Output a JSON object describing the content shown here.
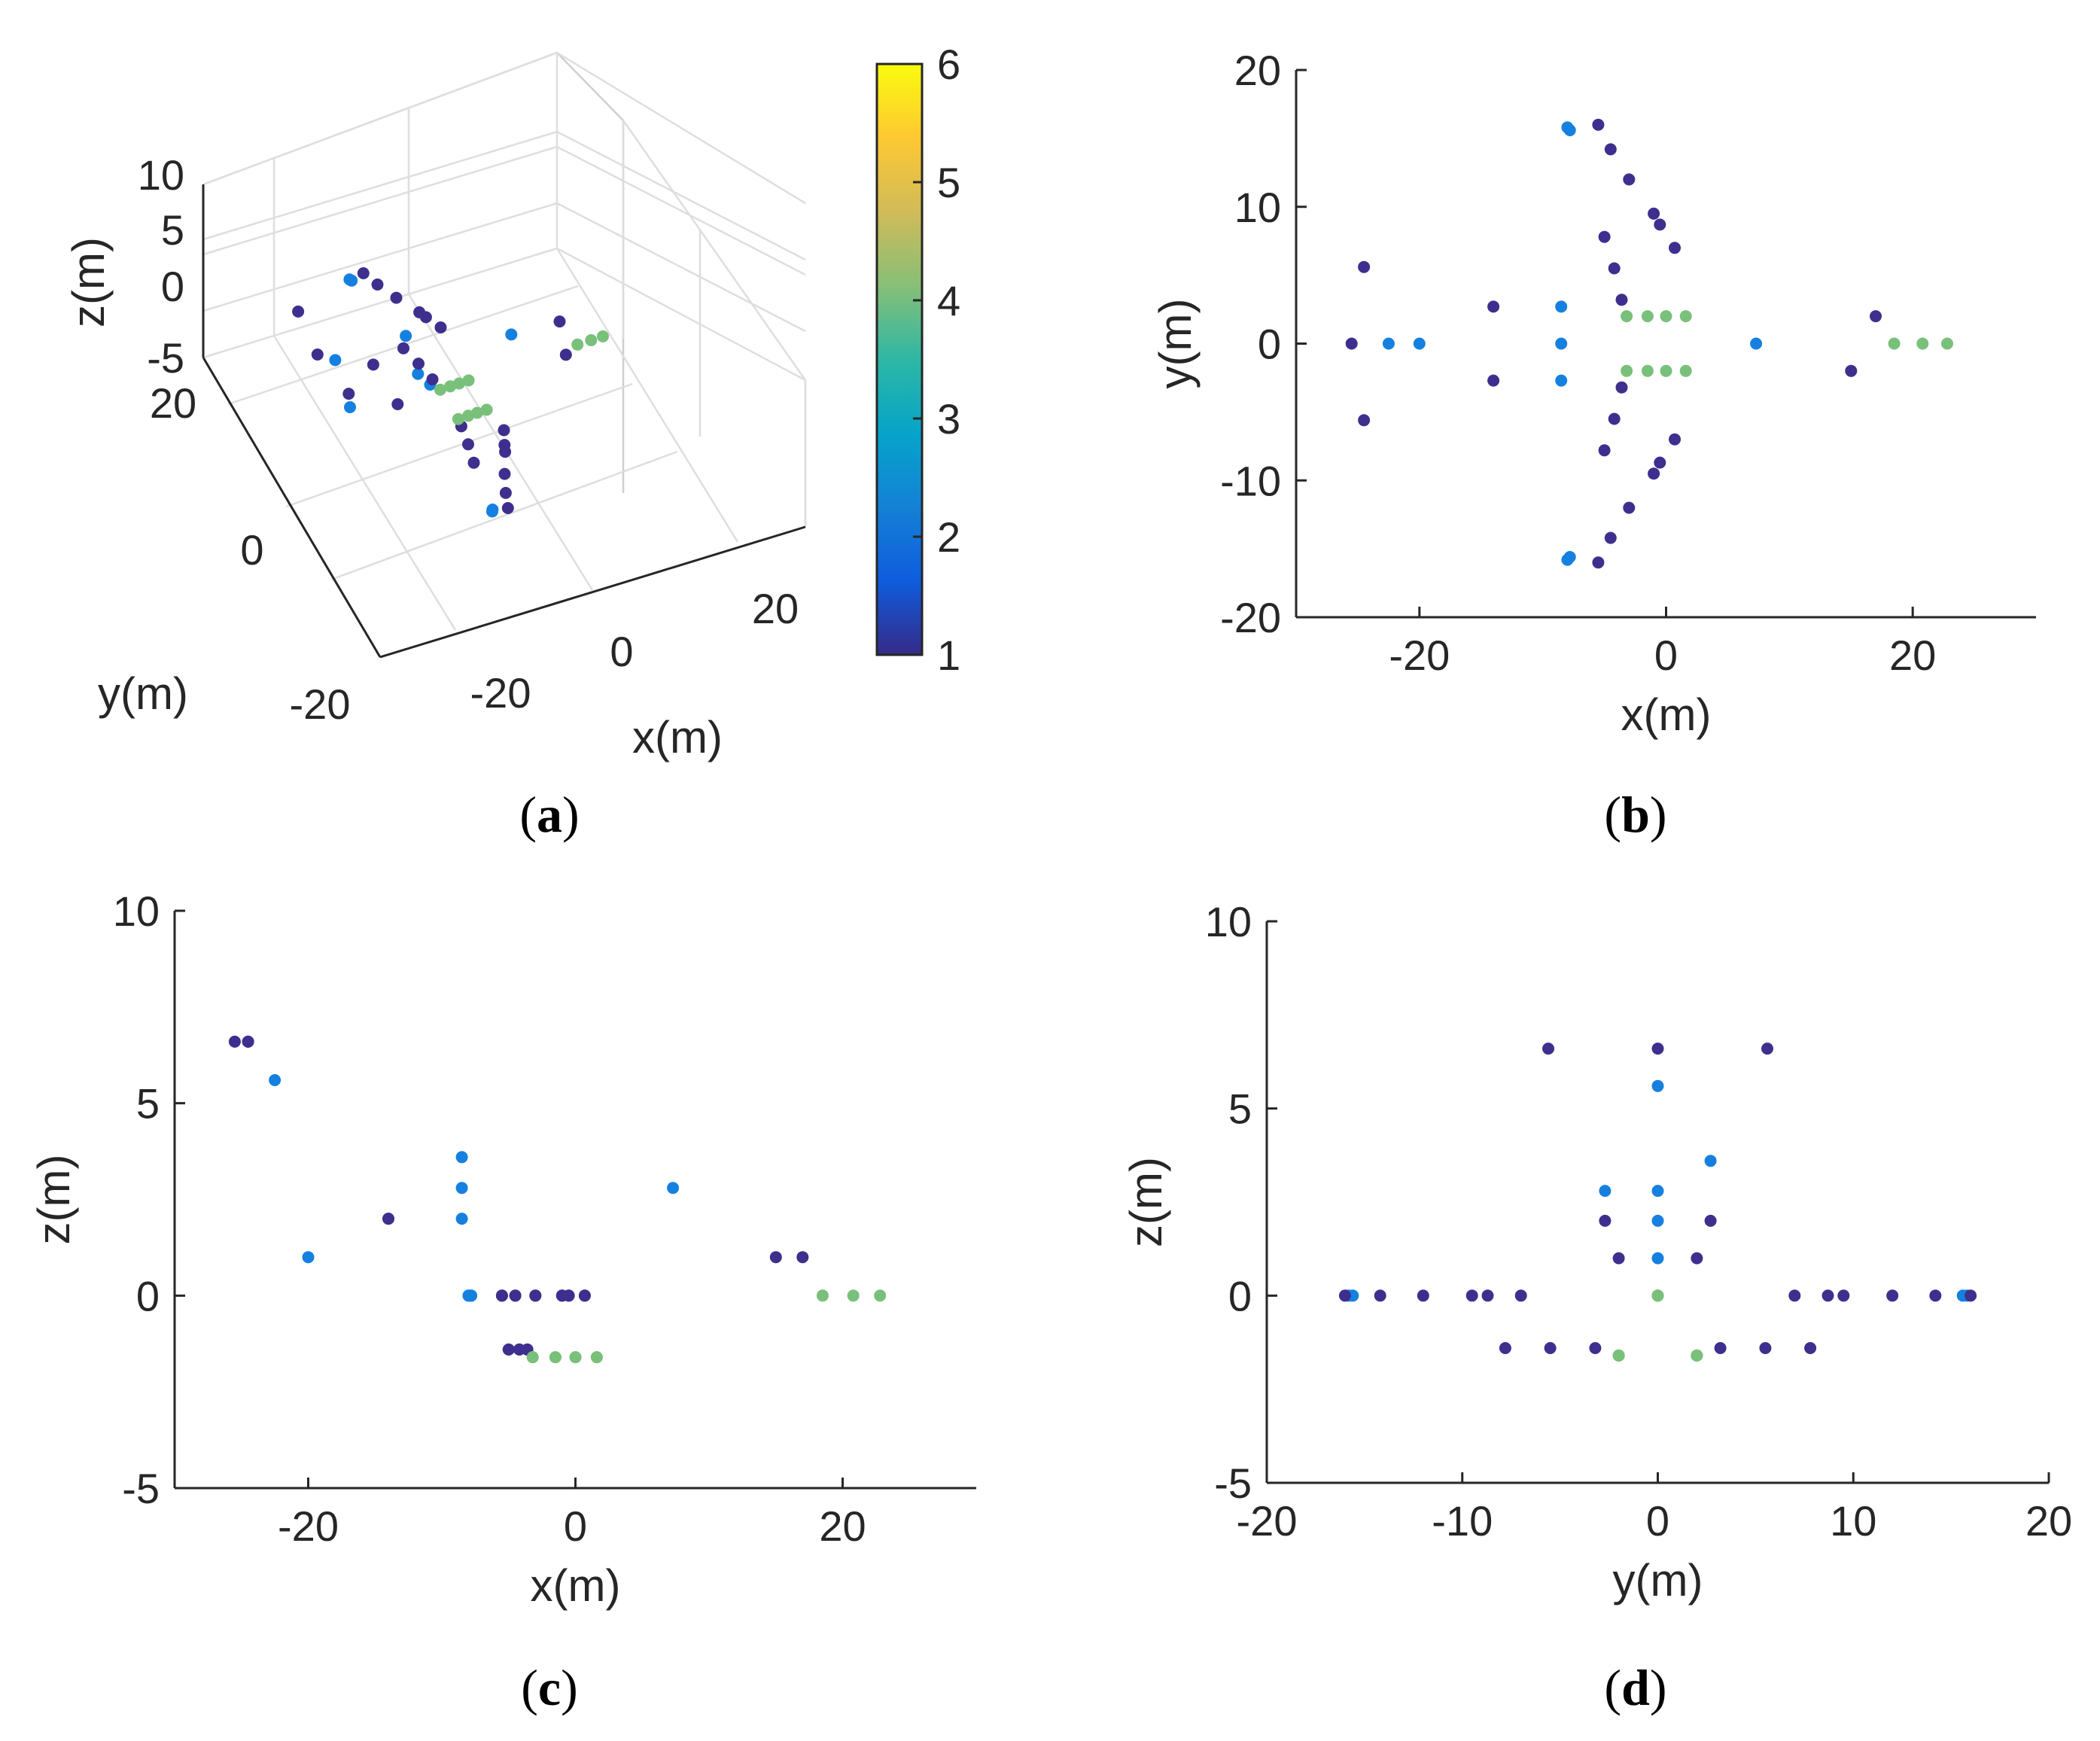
{
  "colormap": {
    "name": "parula",
    "min": 1,
    "max": 6,
    "ticks": [
      "1",
      "2",
      "3",
      "4",
      "5",
      "6"
    ],
    "stops": [
      "#352a87",
      "#0f5cdd",
      "#1481d6",
      "#06a4ca",
      "#2eb7a4",
      "#87bf77",
      "#d1bb59",
      "#fec832",
      "#f9fb0e"
    ]
  },
  "point_colors": {
    "c1": "#3e2f8e",
    "c2": "#1680e0",
    "c4": "#79c07a"
  },
  "chart_data": [
    {
      "id": "a",
      "type": "scatter3d",
      "caption": "(a)",
      "caption_letter": "a",
      "xlabel": "x(m)",
      "ylabel": "y(m)",
      "zlabel": "z(m)",
      "xticks": [
        "-20",
        "0",
        "20"
      ],
      "yticks": [
        "-20",
        "0",
        "20"
      ],
      "zticks": [
        "-5",
        "0",
        "5",
        "10"
      ],
      "xlim": [
        -30,
        30
      ],
      "ylim": [
        -20,
        20
      ],
      "zlim": [
        -5,
        10
      ],
      "colorbar": true
    },
    {
      "id": "b",
      "type": "scatter",
      "caption": "(b)",
      "caption_letter": "b",
      "xlabel": "x(m)",
      "ylabel": "y(m)",
      "xlim": [
        -30,
        30
      ],
      "ylim": [
        -20,
        20
      ],
      "xticks": [
        "-20",
        "0",
        "20"
      ],
      "yticks": [
        "-20",
        "-10",
        "0",
        "10",
        "20"
      ],
      "x_key": "x",
      "y_key": "y"
    },
    {
      "id": "c",
      "type": "scatter",
      "caption": "(c)",
      "caption_letter": "c",
      "xlabel": "x(m)",
      "ylabel": "z(m)",
      "xlim": [
        -30,
        30
      ],
      "ylim": [
        -5,
        10
      ],
      "xticks": [
        "-20",
        "0",
        "20"
      ],
      "yticks": [
        "-5",
        "0",
        "5",
        "10"
      ],
      "x_key": "x",
      "y_key": "z"
    },
    {
      "id": "d",
      "type": "scatter",
      "caption": "(d)",
      "caption_letter": "d",
      "xlabel": "y(m)",
      "ylabel": "z(m)",
      "xlim": [
        -20,
        20
      ],
      "ylim": [
        -5,
        10
      ],
      "xticks": [
        "-20",
        "-10",
        "0",
        "10",
        "20"
      ],
      "yticks": [
        "-5",
        "0",
        "5",
        "10"
      ],
      "x_key": "y",
      "y_key": "z"
    }
  ],
  "points": [
    {
      "x": -25.5,
      "y": 0,
      "z": 6.6,
      "c": 1
    },
    {
      "x": -24.5,
      "y": 5.6,
      "z": 6.6,
      "c": 1
    },
    {
      "x": -24.5,
      "y": -5.6,
      "z": 6.6,
      "c": 1
    },
    {
      "x": -22.5,
      "y": 0,
      "z": 5.6,
      "c": 2
    },
    {
      "x": -20,
      "y": 0,
      "z": 1.0,
      "c": 2
    },
    {
      "x": -14,
      "y": 2.7,
      "z": 2.0,
      "c": 1
    },
    {
      "x": -14,
      "y": -2.7,
      "z": 2.0,
      "c": 1
    },
    {
      "x": -8.5,
      "y": 2.7,
      "z": 3.6,
      "c": 2
    },
    {
      "x": -8.5,
      "y": 0,
      "z": 2.0,
      "c": 2
    },
    {
      "x": -8.5,
      "y": -2.7,
      "z": 2.8,
      "c": 2
    },
    {
      "x": -8,
      "y": 15.8,
      "z": 0,
      "c": 2
    },
    {
      "x": -7.8,
      "y": 15.6,
      "z": 0,
      "c": 2
    },
    {
      "x": -8,
      "y": -15.8,
      "z": 0,
      "c": 2
    },
    {
      "x": -7.8,
      "y": -15.6,
      "z": 0,
      "c": 2
    },
    {
      "x": -5.5,
      "y": 16,
      "z": 0,
      "c": 1
    },
    {
      "x": -5.5,
      "y": -16,
      "z": 0,
      "c": 1
    },
    {
      "x": -4.5,
      "y": 14.2,
      "z": 0,
      "c": 1
    },
    {
      "x": -4.5,
      "y": -14.2,
      "z": 0,
      "c": 1
    },
    {
      "x": -3,
      "y": 12,
      "z": 0,
      "c": 1
    },
    {
      "x": -3,
      "y": -12,
      "z": 0,
      "c": 1
    },
    {
      "x": -1,
      "y": 9.5,
      "z": 0,
      "c": 1
    },
    {
      "x": -1,
      "y": -9.5,
      "z": 0,
      "c": 1
    },
    {
      "x": -0.5,
      "y": 8.7,
      "z": 0,
      "c": 1
    },
    {
      "x": -0.5,
      "y": -8.7,
      "z": 0,
      "c": 1
    },
    {
      "x": 0.7,
      "y": 7,
      "z": 0,
      "c": 1
    },
    {
      "x": 0.7,
      "y": -7,
      "z": 0,
      "c": 1
    },
    {
      "x": -5,
      "y": 7.8,
      "z": -1.4,
      "c": 1
    },
    {
      "x": -5,
      "y": -7.8,
      "z": -1.4,
      "c": 1
    },
    {
      "x": -4.2,
      "y": 5.5,
      "z": -1.4,
      "c": 1
    },
    {
      "x": -4.2,
      "y": -5.5,
      "z": -1.4,
      "c": 1
    },
    {
      "x": -3.6,
      "y": 3.2,
      "z": -1.4,
      "c": 1
    },
    {
      "x": -3.6,
      "y": -3.2,
      "z": -1.4,
      "c": 1
    },
    {
      "x": -3.2,
      "y": 2.0,
      "z": -1.6,
      "c": 4
    },
    {
      "x": -1.5,
      "y": 2.0,
      "z": -1.6,
      "c": 4
    },
    {
      "x": 0,
      "y": 2.0,
      "z": -1.6,
      "c": 4
    },
    {
      "x": 1.6,
      "y": 2.0,
      "z": -1.6,
      "c": 4
    },
    {
      "x": -3.2,
      "y": -2.0,
      "z": -1.6,
      "c": 4
    },
    {
      "x": -1.5,
      "y": -2.0,
      "z": -1.6,
      "c": 4
    },
    {
      "x": 0,
      "y": -2.0,
      "z": -1.6,
      "c": 4
    },
    {
      "x": 1.6,
      "y": -2.0,
      "z": -1.6,
      "c": 4
    },
    {
      "x": 7.3,
      "y": 0,
      "z": 2.8,
      "c": 2
    },
    {
      "x": 15,
      "y": -2.0,
      "z": 1.0,
      "c": 1
    },
    {
      "x": 17,
      "y": 2.0,
      "z": 1.0,
      "c": 1
    },
    {
      "x": 18.5,
      "y": 0,
      "z": 0,
      "c": 4
    },
    {
      "x": 20.8,
      "y": 0,
      "z": 0,
      "c": 4
    },
    {
      "x": 22.8,
      "y": 0,
      "z": 0,
      "c": 4
    }
  ]
}
